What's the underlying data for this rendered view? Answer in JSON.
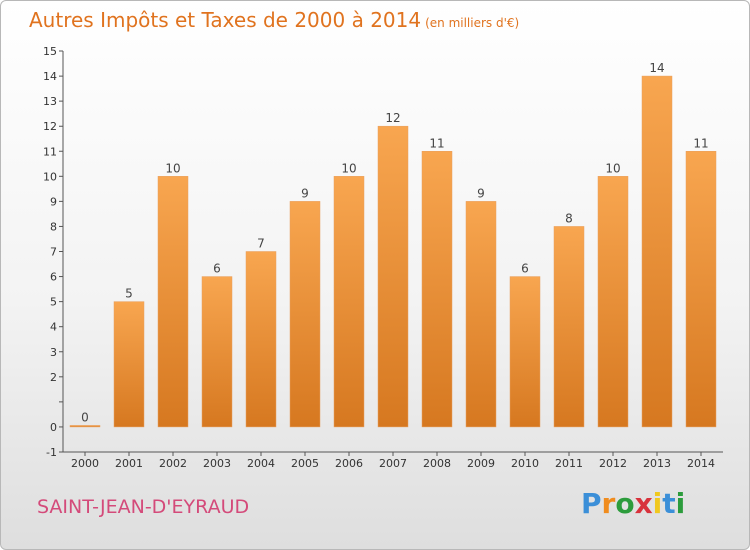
{
  "title": "Autres Impôts et Taxes de 2000 à 2014",
  "subtitle": "(en milliers d'€)",
  "commune": "SAINT-JEAN-D'EYRAUD",
  "logo": {
    "letters": [
      "P",
      "r",
      "o",
      "x",
      "i",
      "t",
      "i"
    ],
    "colors": [
      "#3b8fd8",
      "#f08c1e",
      "#2c9c3c",
      "#d8323c",
      "#f0c81e",
      "#3b8fd8",
      "#2c9c3c"
    ]
  },
  "colors": {
    "title": "#e0731f",
    "commune": "#d44a7a",
    "bar_light": "#f8a650",
    "bar_dark": "#d67820"
  },
  "chart_data": {
    "type": "bar",
    "title": "Autres Impôts et Taxes de 2000 à 2014",
    "subtitle": "(en milliers d'€)",
    "categories": [
      "2000",
      "2001",
      "2002",
      "2003",
      "2004",
      "2005",
      "2006",
      "2007",
      "2008",
      "2009",
      "2010",
      "2011",
      "2012",
      "2013",
      "2014"
    ],
    "values": [
      0,
      5,
      10,
      6,
      7,
      9,
      10,
      12,
      11,
      9,
      6,
      8,
      10,
      14,
      11
    ],
    "value_labels": [
      "0",
      "5",
      "10",
      "6",
      "7",
      "9",
      "10",
      "12",
      "11",
      "9",
      "6",
      "8",
      "10",
      "14",
      "11"
    ],
    "ylim": [
      -1,
      15
    ],
    "yticks": [
      -1,
      0,
      1,
      2,
      3,
      4,
      5,
      6,
      7,
      8,
      9,
      10,
      11,
      12,
      13,
      14,
      15
    ],
    "ytick_labels": [
      "-1",
      "0",
      "",
      "2",
      "3",
      "4",
      "5",
      "6",
      "7",
      "8",
      "9",
      "10",
      "11",
      "12",
      "13",
      "14",
      "15"
    ],
    "grid": false,
    "legend": "none"
  }
}
